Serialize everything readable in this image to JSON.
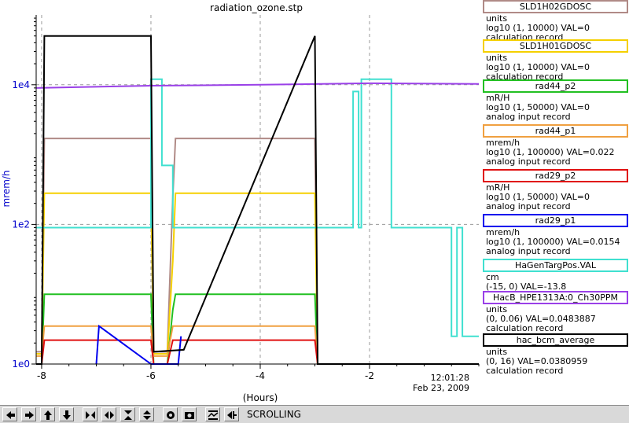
{
  "chart_data": {
    "type": "line",
    "title": "radiation_ozone.stp",
    "xlabel": "(Hours)",
    "ylabel": "mrem/h",
    "yscale": "log",
    "xlim": [
      -8.1,
      0
    ],
    "ylim": [
      1,
      100000
    ],
    "x_ticks": [
      -8,
      -6,
      -4,
      -2
    ],
    "x_tick_labels": [
      "-8",
      "-6",
      "-4",
      "-2"
    ],
    "y_ticks": [
      1,
      100,
      10000
    ],
    "y_tick_labels": [
      "1e0",
      "1e2",
      "1e4"
    ],
    "timestamp_time": "12:01:28",
    "timestamp_date": "Feb 23, 2009",
    "grid": true,
    "series": [
      {
        "name": "SLD1H02GDOSC",
        "color": "#b08a86",
        "x": [
          -8.1,
          -8.0,
          -7.95,
          -6.0,
          -5.95,
          -5.7,
          -5.6,
          -5.55,
          -3.0,
          -2.95,
          0
        ],
        "y": [
          1.5,
          1.5,
          1700,
          1700,
          1.5,
          1.5,
          250,
          1700,
          1700,
          1,
          1
        ]
      },
      {
        "name": "SLD1H01GDOSC",
        "color": "#f5d000",
        "x": [
          -8.1,
          -8.0,
          -7.95,
          -6.0,
          -5.95,
          -5.7,
          -5.6,
          -5.55,
          -3.0,
          -2.95,
          0
        ],
        "y": [
          1.4,
          1.4,
          280,
          280,
          1.4,
          1.4,
          30,
          280,
          280,
          1,
          1
        ]
      },
      {
        "name": "rad44_p2",
        "color": "#22c022",
        "x": [
          -8.1,
          -8.0,
          -7.95,
          -6.0,
          -5.95,
          -5.7,
          -5.6,
          -5.55,
          -3.0,
          -2.95,
          0
        ],
        "y": [
          1,
          1,
          10,
          10,
          1,
          1,
          6,
          10,
          10,
          1,
          1
        ]
      },
      {
        "name": "rad44_p1",
        "color": "#f0a040",
        "x": [
          -8.1,
          -8.0,
          -7.95,
          -6.0,
          -5.95,
          -5.7,
          -5.6,
          -5.55,
          -3.0,
          -2.95,
          0
        ],
        "y": [
          1.3,
          1.3,
          3.5,
          3.5,
          1.3,
          1.3,
          3.5,
          3.5,
          3.5,
          1,
          1
        ]
      },
      {
        "name": "rad29_p2",
        "color": "#e01010",
        "x": [
          -8.1,
          -8.0,
          -7.95,
          -6.0,
          -5.95,
          -5.7,
          -5.6,
          -5.55,
          -3.0,
          -2.95,
          0
        ],
        "y": [
          1,
          1,
          2.2,
          2.2,
          1,
          1,
          2.2,
          2.2,
          2.2,
          1,
          1
        ]
      },
      {
        "name": "rad29_p1",
        "color": "#0000ee",
        "x": [
          -7.0,
          -6.95,
          -6.0,
          -5.9,
          -5.5,
          -5.45
        ],
        "y": [
          1,
          3.5,
          1,
          1,
          1,
          2.5
        ]
      },
      {
        "name": "HaGenTargPos.VAL",
        "color": "#40e0d0",
        "x": [
          -8.1,
          -6.0,
          -6.0,
          -5.8,
          -5.8,
          -5.6,
          -5.6,
          -3.0,
          -2.3,
          -2.3,
          -2.2,
          -2.2,
          -2.15,
          -2.15,
          -2.05,
          -2.05,
          -1.6,
          -1.6,
          -0.5,
          -0.5,
          -0.4,
          -0.4,
          -0.3,
          -0.3,
          -0.1,
          -0.1,
          0
        ],
        "y": [
          90,
          90,
          12000,
          12000,
          700,
          700,
          90,
          90,
          90,
          8000,
          8000,
          90,
          90,
          12000,
          12000,
          12000,
          12000,
          90,
          90,
          2.5,
          2.5,
          90,
          90,
          2.5,
          2.5,
          2.5,
          2.5
        ]
      },
      {
        "name": "HacB_HPE1313A:0_Ch30PPM",
        "color": "#9a40e8",
        "x": [
          -8.1,
          -6.0,
          -4.0,
          -2.0,
          0
        ],
        "y": [
          9000,
          9700,
          10000,
          10500,
          10300
        ]
      },
      {
        "name": "hac_bcm_average",
        "color": "#000000",
        "x": [
          -8.1,
          -8.0,
          -7.95,
          -6.0,
          -5.95,
          -5.4,
          -3.0,
          -2.95,
          0
        ],
        "y": [
          1,
          1,
          50000,
          50000,
          1.5,
          1.6,
          50000,
          1,
          1
        ]
      }
    ]
  },
  "legend": [
    {
      "name": "SLD1H02GDOSC",
      "color": "#b08a86",
      "unit": "units",
      "range": "log10 (1, 10000) VAL=0",
      "record": "calculation record"
    },
    {
      "name": "SLD1H01GDOSC",
      "color": "#f5d000",
      "unit": "units",
      "range": "log10 (1, 10000) VAL=0",
      "record": "calculation record"
    },
    {
      "name": "rad44_p2",
      "color": "#22c022",
      "unit": "mR/H",
      "range": "log10 (1, 50000) VAL=0",
      "record": "analog input record"
    },
    {
      "name": "rad44_p1",
      "color": "#f0a040",
      "unit": "mrem/h",
      "range": "log10 (1, 100000) VAL=0.022",
      "record": "analog input record"
    },
    {
      "name": "rad29_p2",
      "color": "#e01010",
      "unit": "mR/H",
      "range": "log10 (1, 50000) VAL=0",
      "record": "analog input record"
    },
    {
      "name": "rad29_p1",
      "color": "#0000ee",
      "unit": "mrem/h",
      "range": "log10 (1, 100000) VAL=0.0154",
      "record": "analog input record"
    },
    {
      "name": "HaGenTargPos.VAL",
      "color": "#40e0d0",
      "unit": "cm",
      "range": "(-15, 0) VAL=-13.8",
      "record": ""
    },
    {
      "name": "HacB_HPE1313A:0_Ch30PPM",
      "color": "#9a40e8",
      "unit": "units",
      "range": "(0, 0.06) VAL=0.0483887",
      "record": "calculation record"
    },
    {
      "name": "hac_bcm_average",
      "color": "#000000",
      "unit": "units",
      "range": "(0, 16) VAL=0.0380959",
      "record": "calculation record"
    }
  ],
  "toolbar": {
    "status": "SCROLLING",
    "buttons": [
      {
        "icon": "arrow-left-icon"
      },
      {
        "icon": "arrow-right-icon"
      },
      {
        "icon": "arrow-up-icon"
      },
      {
        "icon": "arrow-down-icon"
      },
      {
        "icon": "zoom-in-horizontal-icon"
      },
      {
        "icon": "zoom-out-horizontal-icon"
      },
      {
        "icon": "zoom-in-vertical-icon"
      },
      {
        "icon": "zoom-out-vertical-icon"
      },
      {
        "icon": "record-icon"
      },
      {
        "icon": "camera-icon"
      },
      {
        "icon": "autoscale-icon"
      },
      {
        "icon": "scroll-end-icon"
      }
    ]
  }
}
